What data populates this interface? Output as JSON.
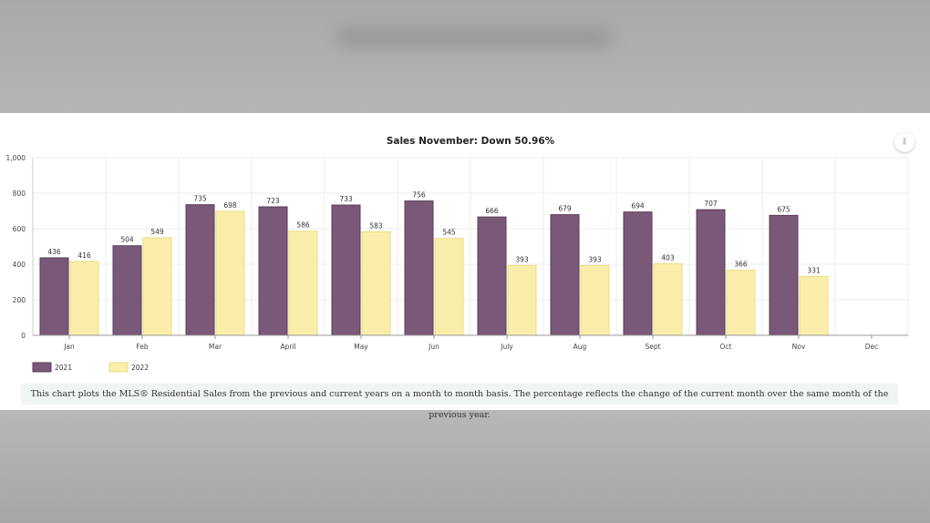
{
  "chart_data": {
    "type": "bar",
    "title": "Sales November: Down 50.96%",
    "categories": [
      "Jan",
      "Feb",
      "Mar",
      "April",
      "May",
      "Jun",
      "July",
      "Aug",
      "Sept",
      "Oct",
      "Nov",
      "Dec"
    ],
    "series": [
      {
        "name": "2021",
        "color": "#7a5878",
        "values": [
          436,
          504,
          735,
          723,
          733,
          756,
          666,
          679,
          694,
          707,
          675,
          null
        ]
      },
      {
        "name": "2022",
        "color": "#faeeaa",
        "values": [
          416,
          549,
          698,
          586,
          583,
          545,
          393,
          393,
          403,
          366,
          331,
          null
        ]
      }
    ],
    "ylim": [
      0,
      1000
    ],
    "yticks": [
      0,
      200,
      400,
      600,
      800,
      1000
    ],
    "ytick_labels": [
      "0",
      "200",
      "400",
      "600",
      "800",
      "1,000"
    ],
    "grid": true,
    "legend": "bottom-left",
    "xlabel": "",
    "ylabel": ""
  },
  "caption": "This chart plots the MLS® Residential Sales from the previous and current years on a month to month basis. The percentage reflects the change of the current month over the same month of the previous year.",
  "download_icon": "download-icon"
}
